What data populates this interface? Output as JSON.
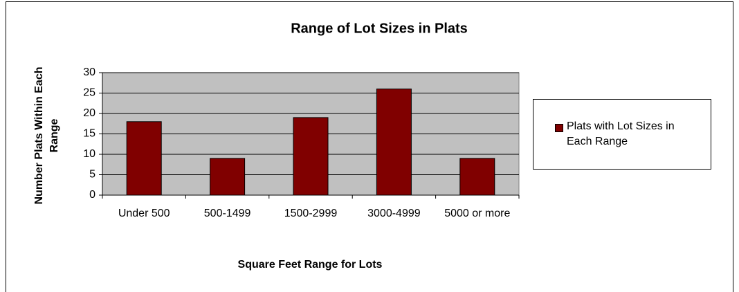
{
  "chart_data": {
    "type": "bar",
    "title": "Range of Lot Sizes in Plats",
    "x_label": "Square Feet Range for Lots",
    "y_label": "Number Plats Within Each Range",
    "categories": [
      "Under 500",
      "500-1499",
      "1500-2999",
      "3000-4999",
      "5000 or more"
    ],
    "series": [
      {
        "name": "Plats with Lot Sizes in Each Range",
        "color": "#800000",
        "values": [
          18,
          9,
          19,
          26,
          9
        ]
      }
    ],
    "ylim": [
      0,
      30
    ],
    "yticks": [
      0,
      5,
      10,
      15,
      20,
      25,
      30
    ],
    "grid": true,
    "legend": "right"
  }
}
